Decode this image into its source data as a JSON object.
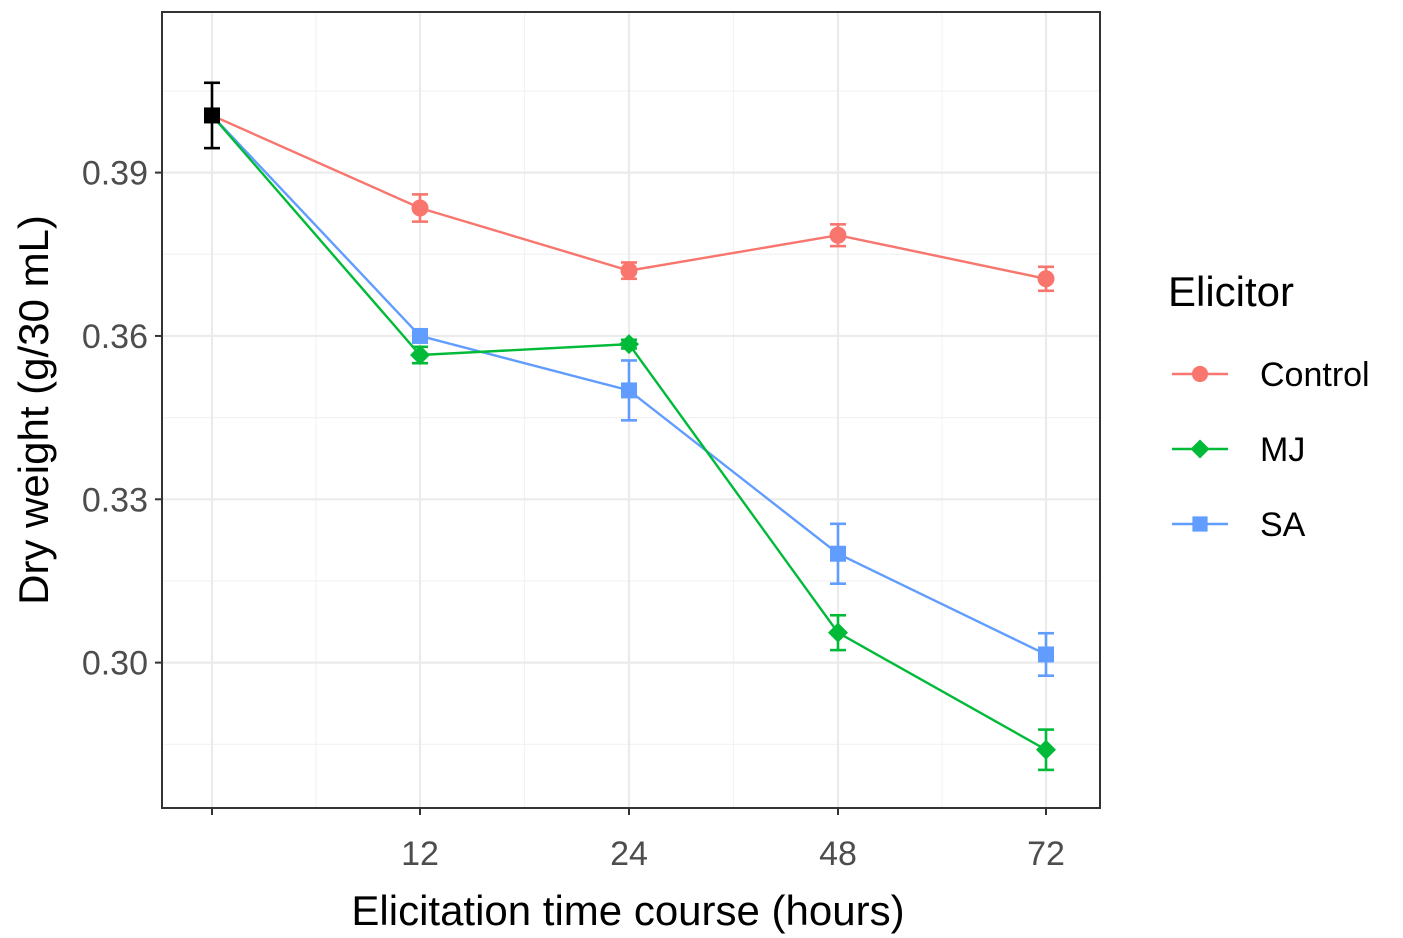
{
  "chart_data": {
    "type": "line",
    "title": "",
    "xlabel": "Elicitation time course (hours)",
    "ylabel": "Dry weight (g/30 mL)",
    "categories": [
      "0",
      "12",
      "24",
      "48",
      "72"
    ],
    "x_tick_labels": [
      "",
      "12",
      "24",
      "48",
      "72"
    ],
    "y_ticks": [
      0.3,
      0.33,
      0.36,
      0.39
    ],
    "y_tick_labels": [
      "0.30",
      "0.33",
      "0.36",
      "0.39"
    ],
    "ylim": [
      0.2733,
      0.4195
    ],
    "grid": true,
    "legend_title": "Elicitor",
    "legend_position": "right",
    "baseline": {
      "value": 0.4005,
      "err": 0.006,
      "color": "#000000"
    },
    "series": [
      {
        "name": "Control",
        "color": "#F8766D",
        "marker": "circle",
        "values": [
          0.4005,
          0.3835,
          0.372,
          0.3785,
          0.3705
        ],
        "errors": [
          0.006,
          0.0025,
          0.0015,
          0.002,
          0.0022
        ]
      },
      {
        "name": "MJ",
        "color": "#00BA38",
        "marker": "diamond",
        "values": [
          0.4005,
          0.3565,
          0.3585,
          0.3055,
          0.284
        ],
        "errors": [
          0.006,
          0.0015,
          0.0008,
          0.0032,
          0.0037
        ]
      },
      {
        "name": "SA",
        "color": "#619CFF",
        "marker": "square",
        "values": [
          0.4005,
          0.36,
          0.35,
          0.32,
          0.3015
        ],
        "errors": [
          0.006,
          0.001,
          0.0055,
          0.0055,
          0.0039
        ]
      }
    ]
  }
}
